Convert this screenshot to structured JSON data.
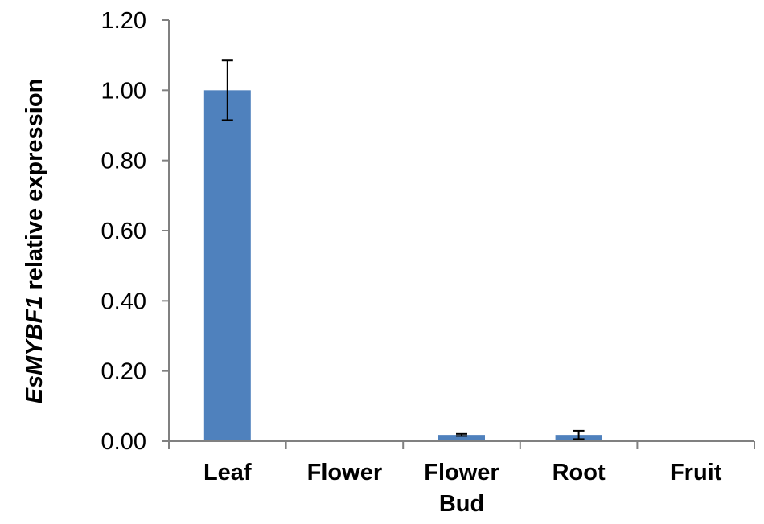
{
  "chart_data": {
    "type": "bar",
    "title": "",
    "xlabel": "",
    "ylabel_italic": "EsMYBF1",
    "ylabel_rest": " relative expression",
    "categories": [
      {
        "lines": [
          "Leaf"
        ]
      },
      {
        "lines": [
          "Flower"
        ]
      },
      {
        "lines": [
          "Flower",
          "Bud"
        ]
      },
      {
        "lines": [
          "Root"
        ]
      },
      {
        "lines": [
          "Fruit"
        ]
      }
    ],
    "values": [
      1.0,
      0.0,
      0.018,
      0.018,
      0.0
    ],
    "errors": [
      0.085,
      0.0,
      0.003,
      0.012,
      0.0
    ],
    "ylim": [
      0,
      1.2
    ],
    "yticks": [
      "0.00",
      "0.20",
      "0.40",
      "0.60",
      "0.80",
      "1.00",
      "1.20"
    ],
    "ytick_values": [
      0,
      0.2,
      0.4,
      0.6,
      0.8,
      1.0,
      1.2
    ],
    "bar_color": "#4f81bd",
    "axis_color": "#808080",
    "grid": false,
    "legend": "none"
  }
}
